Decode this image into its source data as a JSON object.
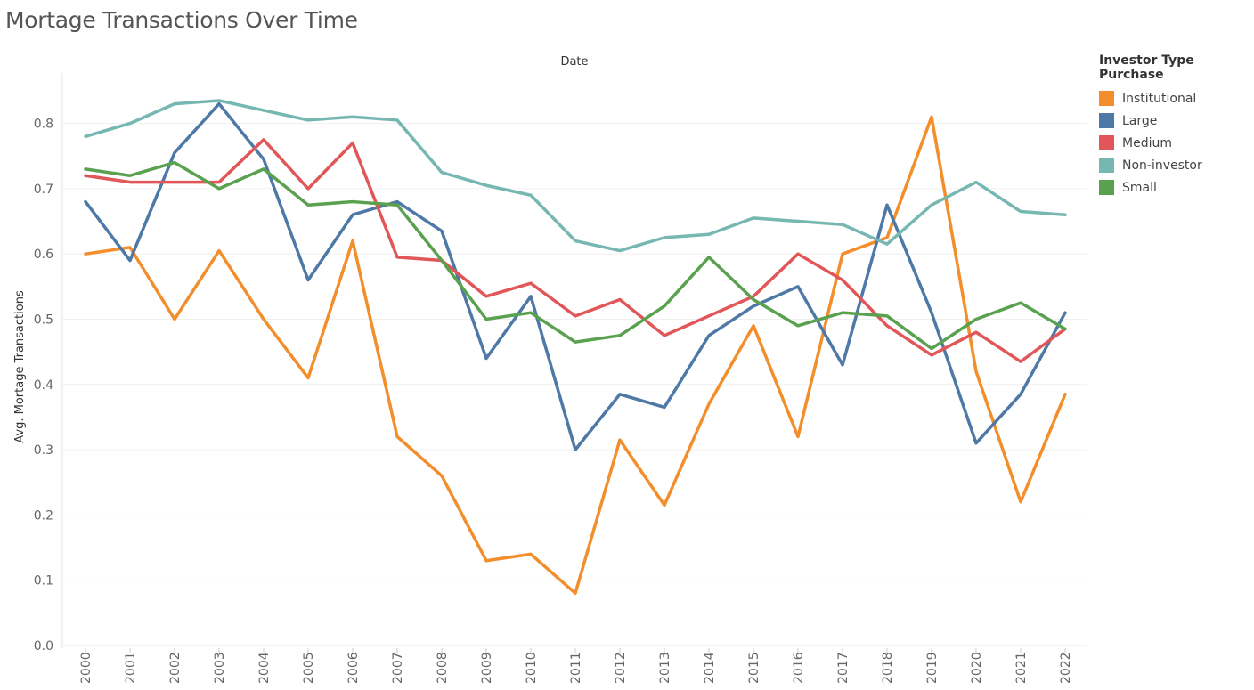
{
  "title": "Mortage Transactions Over Time",
  "chart_data": {
    "type": "line",
    "title": "Mortage Transactions Over Time",
    "column_header": "Date",
    "ylabel": "Avg. Mortage Transactions",
    "ylim": [
      0,
      0.9
    ],
    "yticks": [
      "0.0",
      "0.1",
      "0.2",
      "0.3",
      "0.4",
      "0.5",
      "0.6",
      "0.7",
      "0.8"
    ],
    "ytick_values": [
      0,
      0.1,
      0.2,
      0.3,
      0.4,
      0.5,
      0.6,
      0.7,
      0.8
    ],
    "grid": true,
    "legend_title": "Investor Type Purchase",
    "legend_position": "right",
    "x": [
      "2000",
      "2001",
      "2002",
      "2003",
      "2004",
      "2005",
      "2006",
      "2007",
      "2008",
      "2009",
      "2010",
      "2011",
      "2012",
      "2013",
      "2014",
      "2015",
      "2016",
      "2017",
      "2018",
      "2019",
      "2020",
      "2021",
      "2022"
    ],
    "series": [
      {
        "name": "Institutional",
        "color": "#f28e2b",
        "values": [
          0.6,
          0.61,
          0.5,
          0.605,
          0.5,
          0.41,
          0.62,
          0.32,
          0.26,
          0.13,
          0.14,
          0.08,
          0.315,
          0.215,
          0.37,
          0.49,
          0.32,
          0.6,
          0.625,
          0.81,
          0.42,
          0.22,
          0.385
        ]
      },
      {
        "name": "Large",
        "color": "#4e79a7",
        "values": [
          0.68,
          0.59,
          0.755,
          0.83,
          0.745,
          0.56,
          0.66,
          0.68,
          0.635,
          0.44,
          0.535,
          0.3,
          0.385,
          0.365,
          0.475,
          0.52,
          0.55,
          0.43,
          0.675,
          0.51,
          0.31,
          0.385,
          0.51
        ]
      },
      {
        "name": "Medium",
        "color": "#e15759",
        "values": [
          0.72,
          0.71,
          0.71,
          0.71,
          0.775,
          0.7,
          0.77,
          0.595,
          0.59,
          0.535,
          0.555,
          0.505,
          0.53,
          0.475,
          0.505,
          0.535,
          0.6,
          0.56,
          0.49,
          0.445,
          0.48,
          0.435,
          0.485
        ]
      },
      {
        "name": "Non-investor",
        "color": "#76b7b2",
        "values": [
          0.78,
          0.8,
          0.83,
          0.835,
          0.82,
          0.805,
          0.81,
          0.805,
          0.725,
          0.705,
          0.69,
          0.62,
          0.605,
          0.625,
          0.63,
          0.655,
          0.65,
          0.645,
          0.615,
          0.675,
          0.71,
          0.665,
          0.66
        ]
      },
      {
        "name": "Small",
        "color": "#59a14f",
        "values": [
          0.73,
          0.72,
          0.74,
          0.7,
          0.73,
          0.675,
          0.68,
          0.675,
          0.59,
          0.5,
          0.51,
          0.465,
          0.475,
          0.52,
          0.595,
          0.53,
          0.49,
          0.51,
          0.505,
          0.455,
          0.5,
          0.525,
          0.485
        ]
      }
    ]
  }
}
